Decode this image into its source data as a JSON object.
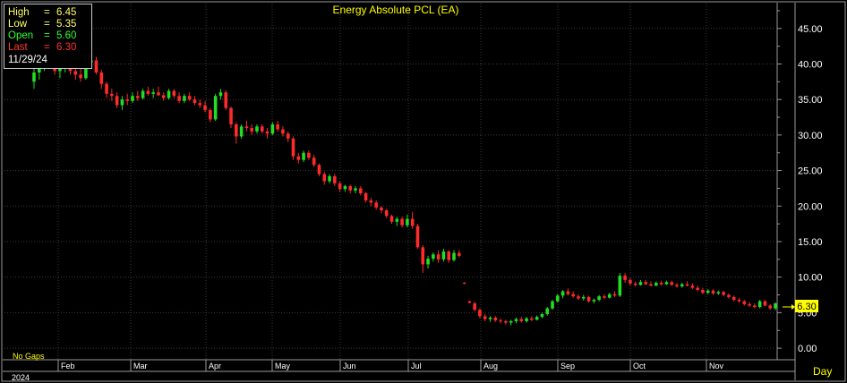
{
  "chart_data": {
    "type": "candlestick",
    "title": "Energy Absolute PCL (EA)",
    "timeframe": "Day",
    "year_label": "2024",
    "gaps_label": "No Gaps",
    "y_ticks": [
      0,
      5,
      10,
      15,
      20,
      25,
      30,
      35,
      40,
      45
    ],
    "y_tick_labels": [
      "0.00",
      "5.00",
      "10.00",
      "15.00",
      "20.00",
      "25.00",
      "30.00",
      "35.00",
      "40.00",
      "45.00"
    ],
    "ylim": [
      -1.5,
      48.5
    ],
    "x_months": [
      "Feb",
      "Mar",
      "Apr",
      "May",
      "Jun",
      "Jul",
      "Aug",
      "Sep",
      "Oct",
      "Nov"
    ],
    "last_price_label": "6.30",
    "grid": true,
    "colors": {
      "up": "#22dd22",
      "down": "#ff2a2a",
      "title": "#ffff00",
      "axis_text": "#ffffff",
      "last_label_bg": "#ffff00"
    },
    "info_box": {
      "rows": [
        {
          "label": "High",
          "value": "6.45",
          "color": "#ffff66"
        },
        {
          "label": "Low",
          "value": "5.35",
          "color": "#ffff66"
        },
        {
          "label": "Open",
          "value": "5.60",
          "color": "#33ff33"
        },
        {
          "label": "Last",
          "value": "6.30",
          "color": "#ff3333"
        }
      ],
      "date": "11/29/24"
    },
    "candles": [
      [
        37.5,
        39.5,
        36.5,
        38.8
      ],
      [
        38.8,
        40.5,
        37.8,
        39.8
      ],
      [
        39.8,
        41.5,
        39,
        40.5
      ],
      [
        40.5,
        41.5,
        39.8,
        40.2
      ],
      [
        40.2,
        41,
        38.5,
        39
      ],
      [
        39,
        40,
        38,
        39.6
      ],
      [
        39.6,
        40.5,
        38.8,
        40.2
      ],
      [
        40.2,
        40.8,
        38.5,
        39
      ],
      [
        39,
        39.8,
        37.8,
        38.5
      ],
      [
        38.5,
        39.5,
        37.5,
        38
      ],
      [
        38,
        40.5,
        37.8,
        40.2
      ],
      [
        40.2,
        41.2,
        39.5,
        40.5
      ],
      [
        40.5,
        41,
        38.5,
        38.8
      ],
      [
        38.8,
        39.2,
        36.5,
        37.2
      ],
      [
        37.2,
        37.5,
        35.2,
        35.8
      ],
      [
        35.8,
        36.5,
        34.8,
        35.5
      ],
      [
        35.5,
        36,
        33.8,
        34.2
      ],
      [
        34.2,
        35.5,
        33.5,
        35
      ],
      [
        35,
        35.8,
        34.2,
        34.8
      ],
      [
        34.8,
        36,
        34.5,
        35.5
      ],
      [
        35.5,
        36.2,
        34.8,
        35.2
      ],
      [
        35.2,
        36.5,
        35,
        36.2
      ],
      [
        36.2,
        36.8,
        35.5,
        35.8
      ],
      [
        35.8,
        36.5,
        35.2,
        36
      ],
      [
        36,
        36.8,
        35.5,
        35.6
      ],
      [
        35.6,
        36,
        34.8,
        35.2
      ],
      [
        35.2,
        36.5,
        35,
        36.2
      ],
      [
        36.2,
        36.5,
        35.2,
        35.5
      ],
      [
        35.5,
        36,
        34.5,
        34.8
      ],
      [
        34.8,
        35.8,
        34.5,
        35.5
      ],
      [
        35.5,
        36,
        34.8,
        35
      ],
      [
        35,
        35.5,
        34.2,
        34.5
      ],
      [
        34.5,
        35,
        33.8,
        34.2
      ],
      [
        34.2,
        34.8,
        33.2,
        33.5
      ],
      [
        33.5,
        33.8,
        31.8,
        32.2
      ],
      [
        32.2,
        35.8,
        32,
        35.5
      ],
      [
        35.5,
        36.5,
        35,
        36
      ],
      [
        36,
        36.3,
        33.5,
        33.8
      ],
      [
        33.8,
        34,
        31,
        31.5
      ],
      [
        31.5,
        31.8,
        28.8,
        29.8
      ],
      [
        29.8,
        31.5,
        29.5,
        31.2
      ],
      [
        31.2,
        32,
        30.5,
        31
      ],
      [
        31,
        31.5,
        30,
        30.5
      ],
      [
        30.5,
        31.5,
        30.2,
        31.2
      ],
      [
        31.2,
        31.5,
        30.2,
        30.5
      ],
      [
        30.5,
        31,
        29.5,
        30.2
      ],
      [
        30.2,
        31.8,
        30,
        31.5
      ],
      [
        31.5,
        32,
        30.5,
        30.8
      ],
      [
        30.8,
        31.2,
        29.8,
        30.2
      ],
      [
        30.2,
        30.5,
        29,
        29.5
      ],
      [
        29.5,
        29.8,
        26.5,
        27
      ],
      [
        27,
        27.5,
        26,
        26.5
      ],
      [
        26.5,
        27.8,
        26.2,
        27.5
      ],
      [
        27.5,
        27.8,
        26.5,
        26.8
      ],
      [
        26.8,
        27.2,
        25.5,
        25.8
      ],
      [
        25.8,
        26,
        24.2,
        24.5
      ],
      [
        24.5,
        24.8,
        23,
        23.5
      ],
      [
        23.5,
        24.5,
        23.2,
        24.2
      ],
      [
        24.2,
        24.5,
        22.8,
        23.2
      ],
      [
        23.2,
        23.5,
        22,
        22.4
      ],
      [
        22.4,
        23,
        22,
        22.8
      ],
      [
        22.8,
        23,
        21.8,
        22.2
      ],
      [
        22.2,
        22.8,
        21.8,
        22.5
      ],
      [
        22.5,
        22.8,
        21.5,
        21.8
      ],
      [
        21.8,
        22,
        20.5,
        20.8
      ],
      [
        20.8,
        21.2,
        20,
        20.5
      ],
      [
        20.5,
        20.8,
        19.5,
        19.8
      ],
      [
        19.8,
        20,
        19,
        19.4
      ],
      [
        19.4,
        19.6,
        18.3,
        18.6
      ],
      [
        18.6,
        18.8,
        17.5,
        17.8
      ],
      [
        17.8,
        18.5,
        17.2,
        18.2
      ],
      [
        18.2,
        18.5,
        17,
        17.3
      ],
      [
        17.3,
        18.8,
        17,
        18.2
      ],
      [
        18.2,
        19.2,
        16.8,
        17.2
      ],
      [
        17.2,
        17.5,
        14,
        14.2
      ],
      [
        14.2,
        14.5,
        10.6,
        11.8
      ],
      [
        11.8,
        13,
        11.2,
        12.6
      ],
      [
        12.6,
        13.5,
        12.2,
        13.2
      ],
      [
        13.2,
        13.8,
        12,
        12.5
      ],
      [
        12.5,
        14,
        12.2,
        13.6
      ],
      [
        13.6,
        13.8,
        12,
        12.4
      ],
      [
        12.4,
        13.8,
        12.2,
        13.4
      ],
      [
        13.4,
        13.8,
        12.8,
        13
      ],
      [
        9.2,
        9.3,
        9.0,
        9.1
      ],
      [
        6.6,
        6.7,
        6.3,
        6.4
      ],
      [
        6.3,
        6.5,
        5.2,
        5.4
      ],
      [
        5.4,
        5.6,
        4.2,
        4.5
      ],
      [
        4.5,
        4.8,
        3.8,
        4.1
      ],
      [
        4.1,
        4.5,
        3.7,
        4.3
      ],
      [
        4.3,
        4.5,
        3.7,
        3.9
      ],
      [
        3.9,
        4.2,
        3.5,
        3.8
      ],
      [
        3.8,
        4.0,
        3.3,
        3.6
      ],
      [
        3.6,
        4.0,
        3.2,
        3.8
      ],
      [
        3.8,
        4.3,
        3.5,
        4.1
      ],
      [
        4.1,
        4.4,
        3.6,
        3.8
      ],
      [
        3.8,
        4.4,
        3.6,
        4.2
      ],
      [
        4.2,
        4.5,
        3.8,
        4.0
      ],
      [
        4.0,
        4.6,
        3.9,
        4.4
      ],
      [
        4.4,
        5.0,
        4.2,
        4.8
      ],
      [
        4.8,
        5.8,
        4.6,
        5.6
      ],
      [
        5.6,
        6.8,
        5.4,
        6.6
      ],
      [
        6.6,
        7.6,
        6.4,
        7.4
      ],
      [
        7.4,
        8.2,
        7.0,
        8.0
      ],
      [
        8.0,
        8.4,
        7.4,
        7.6
      ],
      [
        7.6,
        8.0,
        7.1,
        7.3
      ],
      [
        7.3,
        7.6,
        6.8,
        7.0
      ],
      [
        7.0,
        7.5,
        6.7,
        7.2
      ],
      [
        7.2,
        7.4,
        6.4,
        6.6
      ],
      [
        6.6,
        7.0,
        6.3,
        6.8
      ],
      [
        6.8,
        7.5,
        6.6,
        7.3
      ],
      [
        7.3,
        7.6,
        6.9,
        7.1
      ],
      [
        7.1,
        7.8,
        7.0,
        7.6
      ],
      [
        7.6,
        8.0,
        7.2,
        7.4
      ],
      [
        7.4,
        10.6,
        7.2,
        10.2
      ],
      [
        10.2,
        10.6,
        9.2,
        9.6
      ],
      [
        9.6,
        9.9,
        8.8,
        9.1
      ],
      [
        9.1,
        9.4,
        8.7,
        8.9
      ],
      [
        8.9,
        9.6,
        8.8,
        9.3
      ],
      [
        9.3,
        9.6,
        8.9,
        9.0
      ],
      [
        9.0,
        9.4,
        8.7,
        8.8
      ],
      [
        8.8,
        9.4,
        8.7,
        9.2
      ],
      [
        9.2,
        9.5,
        8.8,
        9.0
      ],
      [
        9.0,
        9.5,
        8.9,
        9.3
      ],
      [
        9.3,
        9.5,
        8.8,
        8.9
      ],
      [
        8.9,
        9.2,
        8.5,
        8.7
      ],
      [
        8.7,
        9.2,
        8.5,
        9.0
      ],
      [
        9.0,
        9.4,
        8.7,
        8.8
      ],
      [
        8.8,
        9.1,
        8.3,
        8.5
      ],
      [
        8.5,
        8.8,
        8.0,
        8.2
      ],
      [
        8.2,
        8.5,
        7.6,
        7.8
      ],
      [
        7.8,
        8.3,
        7.6,
        8.1
      ],
      [
        8.1,
        8.3,
        7.5,
        7.7
      ],
      [
        7.7,
        8.1,
        7.5,
        7.9
      ],
      [
        7.9,
        8.1,
        7.3,
        7.5
      ],
      [
        7.5,
        7.7,
        7.0,
        7.2
      ],
      [
        7.2,
        7.4,
        6.6,
        6.8
      ],
      [
        6.8,
        7.1,
        6.4,
        6.6
      ],
      [
        6.6,
        6.8,
        6.0,
        6.2
      ],
      [
        6.2,
        6.5,
        5.8,
        6.0
      ],
      [
        6.0,
        6.3,
        5.6,
        5.8
      ],
      [
        5.8,
        6.8,
        5.6,
        6.6
      ],
      [
        6.6,
        6.8,
        5.9,
        6.0
      ],
      [
        6.0,
        6.2,
        5.4,
        5.6
      ],
      [
        5.6,
        6.45,
        5.35,
        6.3
      ]
    ]
  }
}
